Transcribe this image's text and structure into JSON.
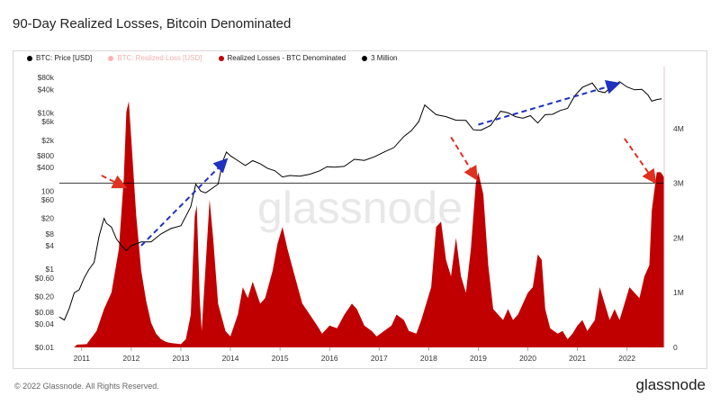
{
  "page": {
    "title": "90-Day Realized Losses, Bitcoin Denominated",
    "copyright": "© 2022 Glassnode. All Rights Reserved.",
    "brand": "glassnode",
    "watermark": "glassnode"
  },
  "colors": {
    "price": "#000000",
    "realized_loss_usd": "#ffb3b3",
    "realized_loss_btc": "#c00000",
    "threshold": "#000000",
    "annotation_red": "#e03020",
    "annotation_blue": "#2030c0"
  },
  "chart_data": {
    "type": "area",
    "legend": [
      {
        "label": "BTC: Price [USD]",
        "color": "#000000"
      },
      {
        "label": "BTC: Realized Loss [USD]",
        "color": "#ffb3b3"
      },
      {
        "label": "Realized Losses - BTC Denominated",
        "color": "#c00000"
      },
      {
        "label": "3 Million",
        "color": "#000000"
      }
    ],
    "x_ticks": [
      "2011",
      "2012",
      "2013",
      "2014",
      "2015",
      "2016",
      "2017",
      "2018",
      "2019",
      "2020",
      "2021",
      "2022"
    ],
    "x_range": [
      2010.55,
      2022.75
    ],
    "left_axis": {
      "scale": "log",
      "range": [
        0.01,
        100000
      ],
      "ticks": [
        "$80k",
        "$40k",
        "$10k",
        "$6k",
        "$2k",
        "$800",
        "$400",
        "100",
        "$60",
        "$20",
        "$8",
        "$4",
        "$1",
        "$0.60",
        "$0.20",
        "$0.08",
        "$0.04",
        "$0.01"
      ],
      "tick_values": [
        80000,
        40000,
        10000,
        6000,
        2000,
        800,
        400,
        100,
        60,
        20,
        8,
        4,
        1,
        0.6,
        0.2,
        0.08,
        0.04,
        0.01
      ]
    },
    "right_axis": {
      "scale": "linear",
      "range": [
        0,
        5000000
      ],
      "ticks": [
        "4M",
        "3M",
        "2M",
        "1M",
        "0"
      ],
      "tick_values": [
        4000000,
        3000000,
        2000000,
        1000000,
        0
      ]
    },
    "threshold_value": 3000000,
    "series": [
      {
        "name": "BTC: Price [USD]",
        "axis": "left",
        "points": [
          [
            2010.55,
            0.06
          ],
          [
            2010.65,
            0.05
          ],
          [
            2010.75,
            0.1
          ],
          [
            2010.85,
            0.25
          ],
          [
            2010.95,
            0.3
          ],
          [
            2011.05,
            0.6
          ],
          [
            2011.15,
            1
          ],
          [
            2011.25,
            1.5
          ],
          [
            2011.35,
            7
          ],
          [
            2011.45,
            20
          ],
          [
            2011.5,
            15
          ],
          [
            2011.6,
            12
          ],
          [
            2011.7,
            6
          ],
          [
            2011.8,
            4
          ],
          [
            2011.9,
            3
          ],
          [
            2012.0,
            4
          ],
          [
            2012.2,
            5
          ],
          [
            2012.4,
            5
          ],
          [
            2012.6,
            8
          ],
          [
            2012.8,
            11
          ],
          [
            2013.0,
            13
          ],
          [
            2013.2,
            40
          ],
          [
            2013.3,
            150
          ],
          [
            2013.4,
            100
          ],
          [
            2013.5,
            90
          ],
          [
            2013.6,
            110
          ],
          [
            2013.75,
            150
          ],
          [
            2013.85,
            600
          ],
          [
            2013.92,
            1000
          ],
          [
            2014.0,
            800
          ],
          [
            2014.15,
            600
          ],
          [
            2014.3,
            450
          ],
          [
            2014.45,
            600
          ],
          [
            2014.6,
            500
          ],
          [
            2014.75,
            380
          ],
          [
            2014.9,
            330
          ],
          [
            2015.05,
            230
          ],
          [
            2015.2,
            250
          ],
          [
            2015.4,
            240
          ],
          [
            2015.6,
            270
          ],
          [
            2015.8,
            330
          ],
          [
            2015.95,
            420
          ],
          [
            2016.1,
            410
          ],
          [
            2016.3,
            430
          ],
          [
            2016.5,
            650
          ],
          [
            2016.7,
            610
          ],
          [
            2016.9,
            750
          ],
          [
            2017.1,
            1000
          ],
          [
            2017.3,
            1300
          ],
          [
            2017.5,
            2500
          ],
          [
            2017.65,
            3500
          ],
          [
            2017.8,
            6000
          ],
          [
            2017.92,
            16000
          ],
          [
            2018.0,
            13000
          ],
          [
            2018.15,
            9000
          ],
          [
            2018.35,
            8000
          ],
          [
            2018.55,
            6500
          ],
          [
            2018.75,
            6400
          ],
          [
            2018.9,
            3700
          ],
          [
            2019.05,
            3600
          ],
          [
            2019.25,
            4800
          ],
          [
            2019.45,
            11000
          ],
          [
            2019.6,
            10000
          ],
          [
            2019.75,
            8000
          ],
          [
            2019.9,
            7300
          ],
          [
            2020.05,
            8500
          ],
          [
            2020.2,
            5500
          ],
          [
            2020.35,
            9000
          ],
          [
            2020.5,
            9200
          ],
          [
            2020.65,
            11500
          ],
          [
            2020.8,
            13000
          ],
          [
            2020.95,
            28000
          ],
          [
            2021.1,
            45000
          ],
          [
            2021.3,
            58000
          ],
          [
            2021.42,
            36000
          ],
          [
            2021.55,
            33000
          ],
          [
            2021.7,
            47000
          ],
          [
            2021.85,
            63000
          ],
          [
            2022.0,
            46000
          ],
          [
            2022.15,
            39000
          ],
          [
            2022.3,
            40000
          ],
          [
            2022.42,
            29000
          ],
          [
            2022.5,
            20000
          ],
          [
            2022.6,
            22000
          ],
          [
            2022.7,
            23000
          ]
        ]
      },
      {
        "name": "Realized Losses - BTC Denominated",
        "axis": "right",
        "points": [
          [
            2010.55,
            0
          ],
          [
            2010.85,
            0
          ],
          [
            2010.9,
            50000
          ],
          [
            2011.1,
            60000
          ],
          [
            2011.3,
            300000
          ],
          [
            2011.45,
            700000
          ],
          [
            2011.6,
            1000000
          ],
          [
            2011.75,
            1800000
          ],
          [
            2011.85,
            3100000
          ],
          [
            2011.9,
            4300000
          ],
          [
            2011.95,
            4500000
          ],
          [
            2012.0,
            3800000
          ],
          [
            2012.1,
            2400000
          ],
          [
            2012.2,
            1400000
          ],
          [
            2012.3,
            850000
          ],
          [
            2012.4,
            450000
          ],
          [
            2012.5,
            250000
          ],
          [
            2012.6,
            150000
          ],
          [
            2012.7,
            100000
          ],
          [
            2012.8,
            80000
          ],
          [
            2012.9,
            70000
          ],
          [
            2013.0,
            60000
          ],
          [
            2013.1,
            150000
          ],
          [
            2013.2,
            600000
          ],
          [
            2013.28,
            2400000
          ],
          [
            2013.32,
            2600000
          ],
          [
            2013.38,
            900000
          ],
          [
            2013.42,
            300000
          ],
          [
            2013.5,
            1500000
          ],
          [
            2013.58,
            2700000
          ],
          [
            2013.65,
            2000000
          ],
          [
            2013.75,
            800000
          ],
          [
            2013.9,
            300000
          ],
          [
            2014.0,
            200000
          ],
          [
            2014.15,
            600000
          ],
          [
            2014.25,
            1100000
          ],
          [
            2014.35,
            900000
          ],
          [
            2014.45,
            1200000
          ],
          [
            2014.6,
            800000
          ],
          [
            2014.7,
            900000
          ],
          [
            2014.85,
            1400000
          ],
          [
            2014.95,
            1900000
          ],
          [
            2015.05,
            2200000
          ],
          [
            2015.15,
            1800000
          ],
          [
            2015.3,
            1300000
          ],
          [
            2015.45,
            800000
          ],
          [
            2015.6,
            600000
          ],
          [
            2015.75,
            400000
          ],
          [
            2015.85,
            250000
          ],
          [
            2016.0,
            400000
          ],
          [
            2016.15,
            350000
          ],
          [
            2016.3,
            600000
          ],
          [
            2016.45,
            800000
          ],
          [
            2016.55,
            700000
          ],
          [
            2016.7,
            400000
          ],
          [
            2016.85,
            300000
          ],
          [
            2016.95,
            200000
          ],
          [
            2017.1,
            300000
          ],
          [
            2017.25,
            400000
          ],
          [
            2017.35,
            600000
          ],
          [
            2017.5,
            500000
          ],
          [
            2017.6,
            300000
          ],
          [
            2017.75,
            250000
          ],
          [
            2017.85,
            500000
          ],
          [
            2017.95,
            800000
          ],
          [
            2018.05,
            1100000
          ],
          [
            2018.15,
            2200000
          ],
          [
            2018.25,
            2300000
          ],
          [
            2018.35,
            1600000
          ],
          [
            2018.45,
            1300000
          ],
          [
            2018.55,
            2000000
          ],
          [
            2018.65,
            1300000
          ],
          [
            2018.75,
            1000000
          ],
          [
            2018.85,
            1800000
          ],
          [
            2018.95,
            3000000
          ],
          [
            2019.0,
            3200000
          ],
          [
            2019.1,
            2800000
          ],
          [
            2019.2,
            1500000
          ],
          [
            2019.3,
            700000
          ],
          [
            2019.4,
            600000
          ],
          [
            2019.5,
            500000
          ],
          [
            2019.6,
            700000
          ],
          [
            2019.7,
            500000
          ],
          [
            2019.8,
            600000
          ],
          [
            2019.9,
            800000
          ],
          [
            2020.0,
            1000000
          ],
          [
            2020.1,
            1100000
          ],
          [
            2020.2,
            1700000
          ],
          [
            2020.28,
            1600000
          ],
          [
            2020.35,
            700000
          ],
          [
            2020.45,
            350000
          ],
          [
            2020.6,
            250000
          ],
          [
            2020.7,
            300000
          ],
          [
            2020.8,
            150000
          ],
          [
            2020.9,
            250000
          ],
          [
            2021.0,
            400000
          ],
          [
            2021.1,
            500000
          ],
          [
            2021.2,
            300000
          ],
          [
            2021.35,
            500000
          ],
          [
            2021.45,
            1100000
          ],
          [
            2021.55,
            800000
          ],
          [
            2021.65,
            500000
          ],
          [
            2021.75,
            700000
          ],
          [
            2021.85,
            500000
          ],
          [
            2021.95,
            800000
          ],
          [
            2022.05,
            1100000
          ],
          [
            2022.15,
            1000000
          ],
          [
            2022.25,
            900000
          ],
          [
            2022.35,
            1300000
          ],
          [
            2022.45,
            1500000
          ],
          [
            2022.5,
            2500000
          ],
          [
            2022.6,
            3200000
          ],
          [
            2022.68,
            3200000
          ],
          [
            2022.72,
            3150000
          ],
          [
            2022.75,
            3100000
          ]
        ]
      }
    ],
    "annotations": [
      {
        "type": "arrow",
        "color": "red",
        "from": [
          2011.4,
          250
        ],
        "to": [
          2011.85,
          130
        ]
      },
      {
        "type": "arrow",
        "color": "red",
        "from": [
          2018.45,
          2400
        ],
        "to": [
          2018.95,
          220
        ]
      },
      {
        "type": "arrow",
        "color": "red",
        "from": [
          2021.95,
          2200
        ],
        "to": [
          2022.55,
          180
        ]
      },
      {
        "type": "arrow",
        "color": "blue",
        "from": [
          2012.2,
          4
        ],
        "to": [
          2013.9,
          600
        ]
      },
      {
        "type": "arrow",
        "color": "blue",
        "from": [
          2019.0,
          5000
        ],
        "to": [
          2021.8,
          55000
        ]
      }
    ]
  }
}
